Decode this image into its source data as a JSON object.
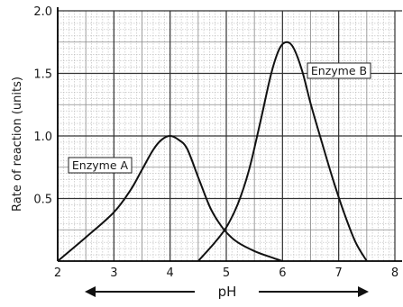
{
  "chart_data": {
    "type": "line",
    "title": "",
    "xlabel": "pH",
    "ylabel": "Rate of reaction (units)",
    "xlim": [
      2,
      8
    ],
    "ylim": [
      0,
      2.0
    ],
    "xticks": [
      2,
      3,
      4,
      5,
      6,
      7,
      8
    ],
    "yticks": [
      0.5,
      1.0,
      1.5,
      2.0
    ],
    "xtick_labels": [
      "2",
      "3",
      "4",
      "5",
      "6",
      "7",
      "8"
    ],
    "ytick_labels": [
      "0.5",
      "1.0",
      "1.5",
      "2.0"
    ],
    "grid": true,
    "series": [
      {
        "name": "Enzyme A",
        "x": [
          2.0,
          2.5,
          3.0,
          3.3,
          3.5,
          3.7,
          3.85,
          4.0,
          4.15,
          4.3,
          4.5,
          4.7,
          4.85,
          5.0,
          5.2,
          5.5,
          5.8,
          6.0
        ],
        "y": [
          0.0,
          0.19,
          0.39,
          0.57,
          0.73,
          0.89,
          0.97,
          1.0,
          0.97,
          0.9,
          0.67,
          0.44,
          0.32,
          0.23,
          0.15,
          0.08,
          0.03,
          0.0
        ]
      },
      {
        "name": "Enzyme B",
        "x": [
          4.5,
          4.8,
          5.0,
          5.2,
          5.4,
          5.6,
          5.8,
          5.95,
          6.08,
          6.2,
          6.35,
          6.5,
          6.7,
          6.9,
          7.1,
          7.3,
          7.5
        ],
        "y": [
          0.0,
          0.15,
          0.27,
          0.45,
          0.72,
          1.1,
          1.5,
          1.7,
          1.75,
          1.7,
          1.52,
          1.26,
          0.95,
          0.65,
          0.38,
          0.15,
          0.0
        ]
      }
    ],
    "annotations": [
      "Enzyme A",
      "Enzyme B"
    ]
  },
  "legend": {
    "enzyme_a": "Enzyme A",
    "enzyme_b": "Enzyme B"
  }
}
